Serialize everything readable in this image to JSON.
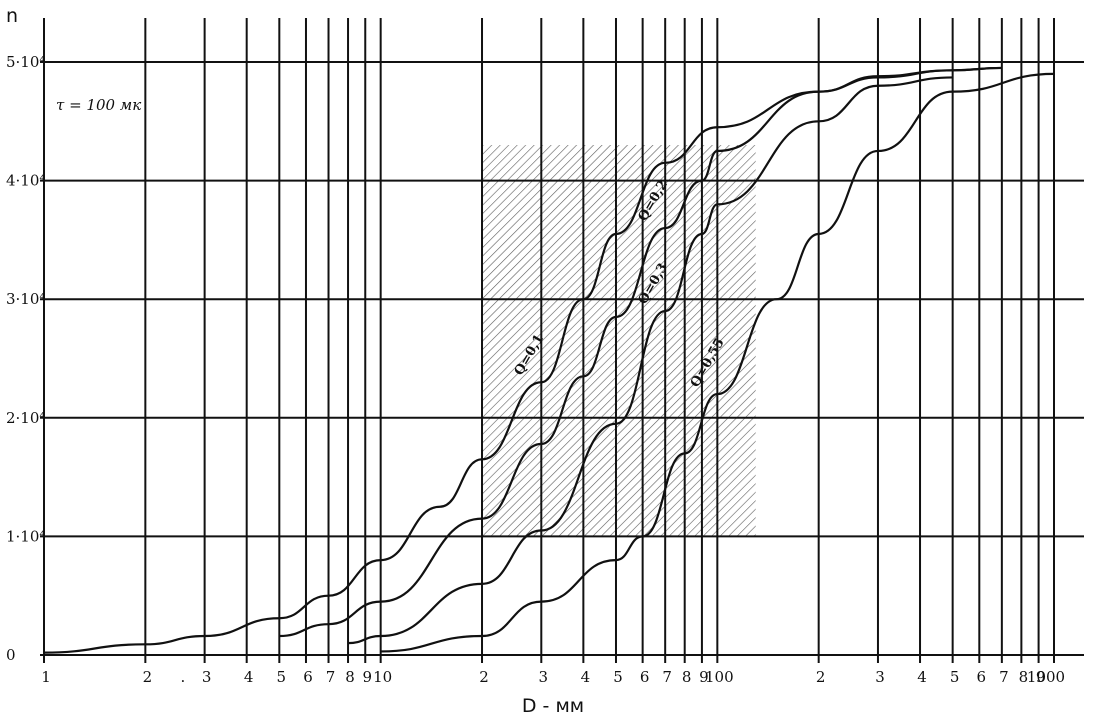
{
  "chart_data": {
    "type": "line",
    "title": "",
    "xlabel": "D - мм",
    "ylabel": "n",
    "x_scale": "log",
    "xlim": [
      1,
      1000
    ],
    "ylim": [
      0,
      50000
    ],
    "annotation": "τ = 100 мк",
    "x_tick_labels": [
      "1",
      "2",
      ".",
      "3",
      "4",
      "5",
      "6",
      "7",
      "8",
      "9",
      "10",
      "2",
      "3",
      "4",
      "5",
      "6",
      "7",
      "8",
      "9",
      "100",
      "2",
      "3",
      "4",
      "5",
      "6",
      "7",
      "8",
      "9",
      "1000"
    ],
    "y_ticks": [
      {
        "value": 0,
        "label": "0"
      },
      {
        "value": 10000,
        "label": "1·10⁴"
      },
      {
        "value": 20000,
        "label": "2·10⁴"
      },
      {
        "value": 30000,
        "label": "3·10⁴"
      },
      {
        "value": 40000,
        "label": "4·10⁴"
      },
      {
        "value": 50000,
        "label": "5·10⁴"
      }
    ],
    "series": [
      {
        "name": "Q=0,1",
        "x": [
          1,
          2,
          3,
          5,
          7,
          10,
          15,
          20,
          30,
          40,
          50,
          70,
          100,
          200,
          300,
          500,
          700
        ],
        "y": [
          200,
          900,
          1600,
          3100,
          5000,
          8000,
          12500,
          16500,
          23000,
          30000,
          35500,
          41500,
          44500,
          47500,
          48700,
          49300,
          49500
        ]
      },
      {
        "name": "Q=0,2",
        "x": [
          5,
          7,
          10,
          20,
          30,
          40,
          50,
          70,
          90,
          100,
          200,
          300,
          500,
          700
        ],
        "y": [
          1600,
          2600,
          4500,
          11500,
          17800,
          23500,
          28500,
          36000,
          40000,
          42500,
          47500,
          48800,
          49300,
          49500
        ]
      },
      {
        "name": "Q=0,3",
        "x": [
          8,
          10,
          20,
          30,
          50,
          70,
          90,
          100,
          200,
          300,
          500
        ],
        "y": [
          1000,
          1600,
          6000,
          10500,
          19500,
          29000,
          35500,
          38000,
          45000,
          48000,
          48700
        ]
      },
      {
        "name": "Q=0,55",
        "x": [
          10,
          20,
          30,
          50,
          60,
          80,
          100,
          150,
          200,
          300,
          500,
          1000
        ],
        "y": [
          300,
          1600,
          4500,
          8000,
          10000,
          17000,
          22000,
          30000,
          35500,
          42500,
          47500,
          49000
        ]
      }
    ],
    "shaded_region": {
      "x_range": [
        20,
        130
      ],
      "y_range": [
        10000,
        43000
      ]
    },
    "grid": true
  }
}
